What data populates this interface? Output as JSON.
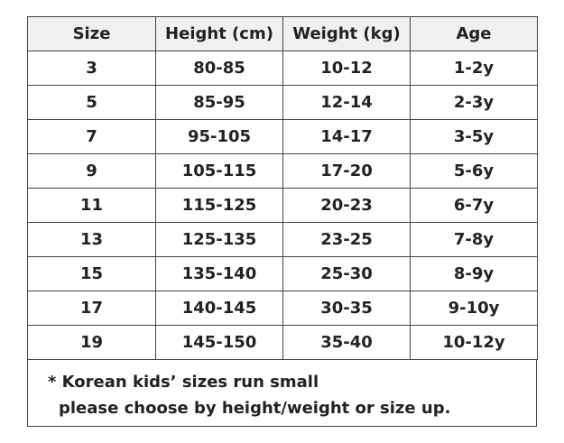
{
  "table": {
    "header": [
      "Size",
      "Height (cm)",
      "Weight (kg)",
      "Age"
    ],
    "rows": [
      [
        "3",
        "80-85",
        "10-12",
        "1-2y"
      ],
      [
        "5",
        "85-95",
        "12-14",
        "2-3y"
      ],
      [
        "7",
        "95-105",
        "14-17",
        "3-5y"
      ],
      [
        "9",
        "105-115",
        "17-20",
        "5-6y"
      ],
      [
        "11",
        "115-125",
        "20-23",
        "6-7y"
      ],
      [
        "13",
        "125-135",
        "23-25",
        "7-8y"
      ],
      [
        "15",
        "135-140",
        "25-30",
        "8-9y"
      ],
      [
        "17",
        "140-145",
        "30-35",
        "9-10y"
      ],
      [
        "19",
        "145-150",
        "35-40",
        "10-12y"
      ]
    ],
    "note": [
      "* Korean kids’ sizes run small",
      "please choose by height/weight or size up."
    ]
  }
}
